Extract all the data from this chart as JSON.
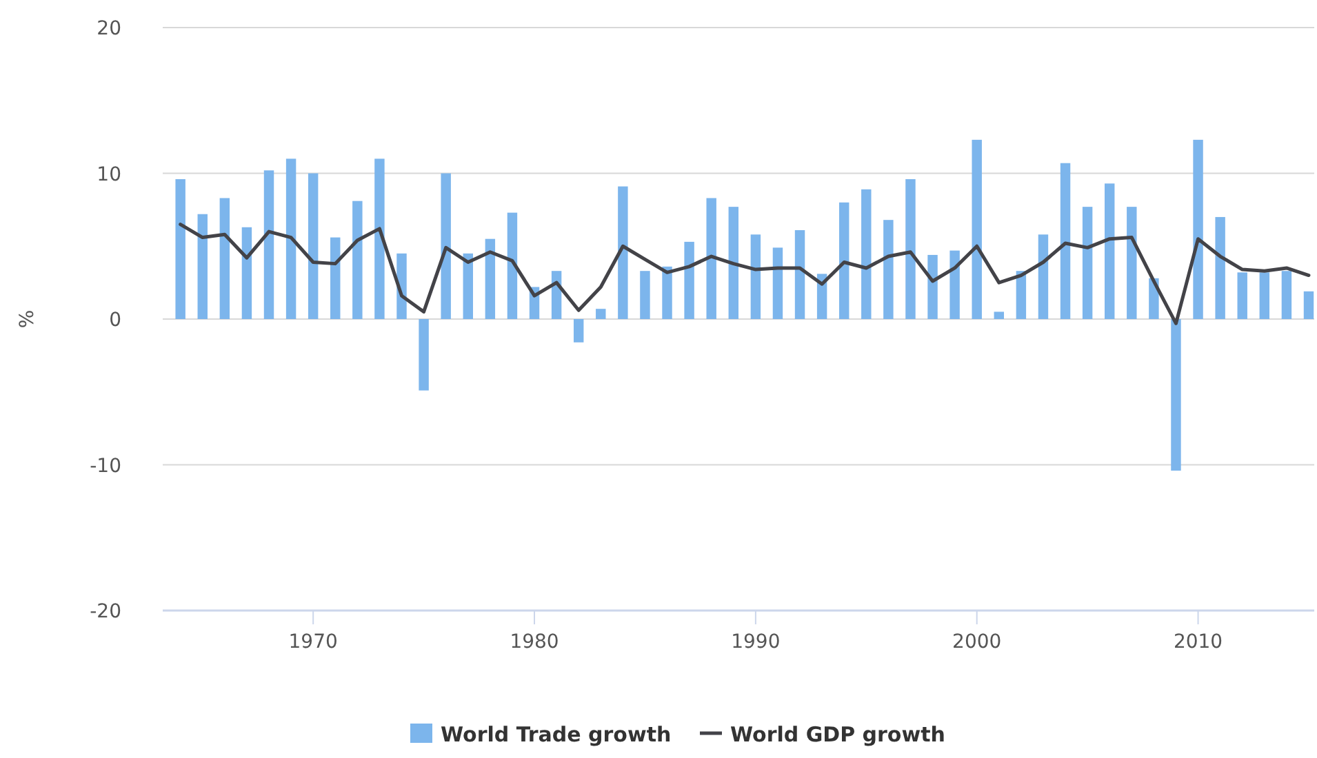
{
  "chart_data": {
    "type": "bar",
    "ylabel": "%",
    "x": [
      1964,
      1965,
      1966,
      1967,
      1968,
      1969,
      1970,
      1971,
      1972,
      1973,
      1974,
      1975,
      1976,
      1977,
      1978,
      1979,
      1980,
      1981,
      1982,
      1983,
      1984,
      1985,
      1986,
      1987,
      1988,
      1989,
      1990,
      1991,
      1992,
      1993,
      1994,
      1995,
      1996,
      1997,
      1998,
      1999,
      2000,
      2001,
      2002,
      2003,
      2004,
      2005,
      2006,
      2007,
      2008,
      2009,
      2010,
      2011,
      2012,
      2013,
      2014,
      2015
    ],
    "series": [
      {
        "name": "World Trade growth",
        "color": "#7cb5ec",
        "values": [
          9.6,
          7.2,
          8.3,
          6.3,
          10.2,
          11.0,
          10.0,
          5.6,
          8.1,
          11.0,
          4.5,
          -4.9,
          10.0,
          4.5,
          5.5,
          7.3,
          2.2,
          3.3,
          -1.6,
          0.7,
          9.1,
          3.3,
          3.6,
          5.3,
          8.3,
          7.7,
          5.8,
          4.9,
          6.1,
          3.1,
          8.0,
          8.9,
          6.8,
          9.6,
          4.4,
          4.7,
          12.3,
          0.5,
          3.3,
          5.8,
          10.7,
          7.7,
          9.3,
          7.7,
          2.8,
          -10.4,
          12.3,
          7.0,
          3.2,
          3.2,
          3.3,
          1.9
        ]
      },
      {
        "name": "World GDP growth",
        "type": "line",
        "color": "#434348",
        "values": [
          6.5,
          5.6,
          5.8,
          4.2,
          6.0,
          5.6,
          3.9,
          3.8,
          5.4,
          6.2,
          1.6,
          0.5,
          4.9,
          3.9,
          4.6,
          4.0,
          1.6,
          2.5,
          0.6,
          2.2,
          5.0,
          4.1,
          3.2,
          3.6,
          4.3,
          3.8,
          3.4,
          3.5,
          3.5,
          2.4,
          3.9,
          3.5,
          4.3,
          4.6,
          2.6,
          3.5,
          5.0,
          2.5,
          3.0,
          3.9,
          5.2,
          4.9,
          5.5,
          5.6,
          2.6,
          -0.3,
          5.5,
          4.3,
          3.4,
          3.3,
          3.5,
          3.0
        ]
      }
    ],
    "xlim": [
      1963.2,
      2015.25
    ],
    "xticks": [
      1970,
      1980,
      1990,
      2000,
      2010
    ],
    "ylim": [
      -20,
      20
    ],
    "yticks": [
      -20,
      -10,
      0,
      10,
      20
    ],
    "grid": "y",
    "legend": "bottom",
    "marker": "none",
    "line_style": "solid"
  }
}
